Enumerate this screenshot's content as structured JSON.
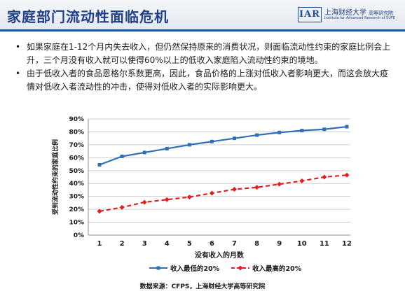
{
  "header": {
    "title": "家庭部门流动性面临危机",
    "logo": {
      "mark_text": "IAR",
      "cn_name": "上海财经大学",
      "cn_sub": "高等研究院",
      "en_name": "Institute for Advanced Research of SUFE"
    }
  },
  "bullets": [
    "如果家庭在1-12个月内失去收入，但仍然保持原来的消费状况，则面临流动性约束的家庭比例会上升，三个月没有收入就可以使得60%以上的低收入家庭陷入流动性约束的境地。",
    "由于低收入者的食品恩格尔系数更高，因此，食品价格的上涨对低收入者影响更大，而这会放大疫情对低收入者流动性的冲击，使得对低收入者的实际影响更大。"
  ],
  "chart_data": {
    "type": "line",
    "title": "",
    "xlabel": "没有收入的月数",
    "ylabel": "受到流动性约束的家庭比例",
    "x": [
      1,
      2,
      3,
      4,
      5,
      6,
      7,
      8,
      9,
      10,
      11,
      12
    ],
    "ylim": [
      0,
      90
    ],
    "yticks": [
      "0%",
      "10%",
      "20%",
      "30%",
      "40%",
      "50%",
      "60%",
      "70%",
      "80%",
      "90%"
    ],
    "grid": "horizontal",
    "legend_position": "bottom",
    "series": [
      {
        "name": "收入最低的20%",
        "color": "#2f6fb5",
        "style": "solid",
        "marker": "square",
        "values": [
          54.5,
          61,
          64,
          67,
          70,
          72.5,
          75,
          77.5,
          79.5,
          81,
          82,
          84
        ]
      },
      {
        "name": "收入最高的20%",
        "color": "#e02020",
        "style": "dashed",
        "marker": "diamond",
        "values": [
          18.5,
          21.5,
          25.5,
          27.5,
          29.5,
          32.5,
          35.5,
          37,
          39.5,
          42,
          45,
          46.5
        ]
      }
    ]
  },
  "source_note": "数据来源：CFPS，上海财经大学高等研究院"
}
